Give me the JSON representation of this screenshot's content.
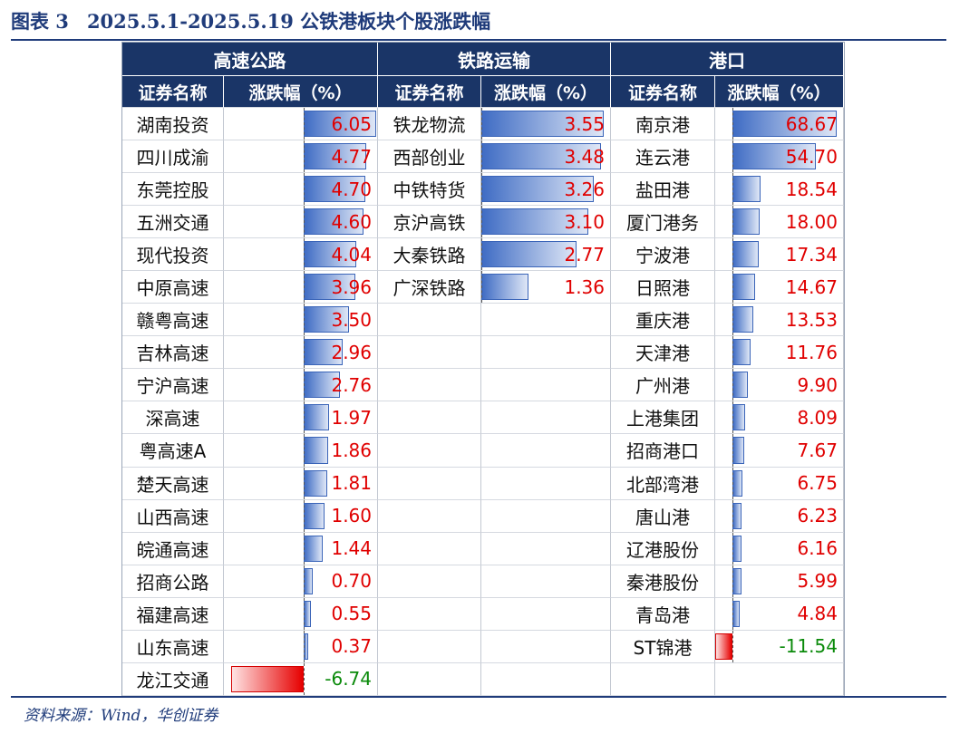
{
  "title": {
    "label": "图表 3",
    "text": "2025.5.1-2025.5.19 公铁港板块个股涨跌幅"
  },
  "colors": {
    "header_bg": "#1a3567",
    "positive": "#e00000",
    "negative": "#0a8a0a",
    "bar_pos": "#3f6cc4",
    "bar_neg": "#e60000"
  },
  "groups": [
    {
      "name": "高速公路",
      "col_name": "证券名称",
      "col_val": "涨跌幅（%）",
      "rows": [
        {
          "name": "湖南投资",
          "value": "6.05"
        },
        {
          "name": "四川成渝",
          "value": "4.77"
        },
        {
          "name": "东莞控股",
          "value": "4.70"
        },
        {
          "name": "五洲交通",
          "value": "4.60"
        },
        {
          "name": "现代投资",
          "value": "4.04"
        },
        {
          "name": "中原高速",
          "value": "3.96"
        },
        {
          "name": "赣粤高速",
          "value": "3.50"
        },
        {
          "name": "吉林高速",
          "value": "2.96"
        },
        {
          "name": "宁沪高速",
          "value": "2.76"
        },
        {
          "name": "深高速",
          "value": "1.97"
        },
        {
          "name": "粤高速A",
          "value": "1.86"
        },
        {
          "name": "楚天高速",
          "value": "1.81"
        },
        {
          "name": "山西高速",
          "value": "1.60"
        },
        {
          "name": "皖通高速",
          "value": "1.44"
        },
        {
          "name": "招商公路",
          "value": "0.70"
        },
        {
          "name": "福建高速",
          "value": "0.55"
        },
        {
          "name": "山东高速",
          "value": "0.37"
        },
        {
          "name": "龙江交通",
          "value": "-6.74"
        }
      ]
    },
    {
      "name": "铁路运输",
      "col_name": "证券名称",
      "col_val": "涨跌幅（%）",
      "rows": [
        {
          "name": "铁龙物流",
          "value": "3.55"
        },
        {
          "name": "西部创业",
          "value": "3.48"
        },
        {
          "name": "中铁特货",
          "value": "3.26"
        },
        {
          "name": "京沪高铁",
          "value": "3.10"
        },
        {
          "name": "大秦铁路",
          "value": "2.77"
        },
        {
          "name": "广深铁路",
          "value": "1.36"
        }
      ]
    },
    {
      "name": "港口",
      "col_name": "证券名称",
      "col_val": "涨跌幅（%）",
      "rows": [
        {
          "name": "南京港",
          "value": "68.67"
        },
        {
          "name": "连云港",
          "value": "54.70"
        },
        {
          "name": "盐田港",
          "value": "18.54"
        },
        {
          "name": "厦门港务",
          "value": "18.00"
        },
        {
          "name": "宁波港",
          "value": "17.34"
        },
        {
          "name": "日照港",
          "value": "14.67"
        },
        {
          "name": "重庆港",
          "value": "13.53"
        },
        {
          "name": "天津港",
          "value": "11.76"
        },
        {
          "name": "广州港",
          "value": "9.90"
        },
        {
          "name": "上港集团",
          "value": "8.09"
        },
        {
          "name": "招商港口",
          "value": "7.67"
        },
        {
          "name": "北部湾港",
          "value": "6.75"
        },
        {
          "name": "唐山港",
          "value": "6.23"
        },
        {
          "name": "辽港股份",
          "value": "6.16"
        },
        {
          "name": "秦港股份",
          "value": "5.99"
        },
        {
          "name": "青岛港",
          "value": "4.84"
        },
        {
          "name": "ST锦港",
          "value": "-11.54"
        }
      ]
    }
  ],
  "source": "资料来源：Wind，华创证券"
}
